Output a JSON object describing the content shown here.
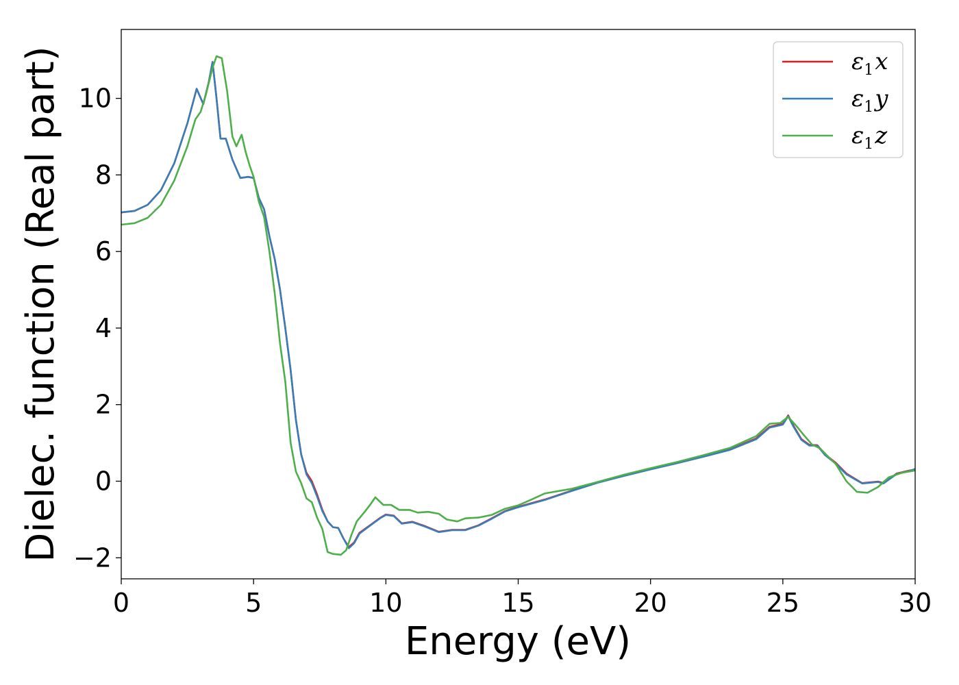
{
  "chart_data": {
    "type": "line",
    "title": "",
    "xlabel": "Energy (eV)",
    "ylabel": "Dielec. function (Real part)",
    "xlim": [
      0,
      30
    ],
    "ylim": [
      -2.55,
      11.8
    ],
    "x_ticks": [
      0,
      5,
      10,
      15,
      20,
      25,
      30
    ],
    "y_ticks": [
      -2,
      0,
      2,
      4,
      6,
      8,
      10
    ],
    "y_tick_labels": [
      "−2",
      "0",
      "2",
      "4",
      "6",
      "8",
      "10"
    ],
    "grid": false,
    "legend_position": "top-right",
    "series": [
      {
        "name": "ε₁x",
        "legend": {
          "base": "ε",
          "sub": "1",
          "var": "x"
        },
        "color": "#e41a1c",
        "points": [
          [
            0,
            7.02
          ],
          [
            0.5,
            7.06
          ],
          [
            1.0,
            7.22
          ],
          [
            1.5,
            7.6
          ],
          [
            2.0,
            8.3
          ],
          [
            2.5,
            9.35
          ],
          [
            2.85,
            10.25
          ],
          [
            3.1,
            9.85
          ],
          [
            3.3,
            10.4
          ],
          [
            3.45,
            10.95
          ],
          [
            3.6,
            10.0
          ],
          [
            3.75,
            8.95
          ],
          [
            3.95,
            8.95
          ],
          [
            4.2,
            8.4
          ],
          [
            4.5,
            7.92
          ],
          [
            4.8,
            7.95
          ],
          [
            5.0,
            7.92
          ],
          [
            5.2,
            7.4
          ],
          [
            5.4,
            7.1
          ],
          [
            5.6,
            6.4
          ],
          [
            5.8,
            5.8
          ],
          [
            6.0,
            5.0
          ],
          [
            6.2,
            4.0
          ],
          [
            6.4,
            2.9
          ],
          [
            6.6,
            1.6
          ],
          [
            6.8,
            0.7
          ],
          [
            7.0,
            0.22
          ],
          [
            7.2,
            0.0
          ],
          [
            7.4,
            -0.35
          ],
          [
            7.6,
            -0.75
          ],
          [
            7.8,
            -1.05
          ],
          [
            8.0,
            -1.2
          ],
          [
            8.2,
            -1.22
          ],
          [
            8.4,
            -1.5
          ],
          [
            8.6,
            -1.72
          ],
          [
            8.8,
            -1.6
          ],
          [
            9.0,
            -1.35
          ],
          [
            9.4,
            -1.15
          ],
          [
            9.8,
            -0.95
          ],
          [
            10.0,
            -0.87
          ],
          [
            10.3,
            -0.9
          ],
          [
            10.6,
            -1.1
          ],
          [
            11.0,
            -1.06
          ],
          [
            11.5,
            -1.18
          ],
          [
            12.0,
            -1.32
          ],
          [
            12.5,
            -1.27
          ],
          [
            13.0,
            -1.27
          ],
          [
            13.5,
            -1.15
          ],
          [
            14.0,
            -0.97
          ],
          [
            14.5,
            -0.78
          ],
          [
            15.0,
            -0.67
          ],
          [
            16.0,
            -0.48
          ],
          [
            17.0,
            -0.25
          ],
          [
            18.0,
            -0.03
          ],
          [
            19.0,
            0.15
          ],
          [
            20.0,
            0.32
          ],
          [
            21.0,
            0.48
          ],
          [
            22.0,
            0.65
          ],
          [
            23.0,
            0.83
          ],
          [
            24.0,
            1.12
          ],
          [
            24.5,
            1.42
          ],
          [
            25.0,
            1.5
          ],
          [
            25.2,
            1.72
          ],
          [
            25.4,
            1.45
          ],
          [
            25.7,
            1.1
          ],
          [
            26.0,
            0.95
          ],
          [
            26.3,
            0.94
          ],
          [
            26.6,
            0.7
          ],
          [
            27.0,
            0.48
          ],
          [
            27.4,
            0.2
          ],
          [
            28.0,
            -0.05
          ],
          [
            28.6,
            -0.01
          ],
          [
            28.8,
            -0.05
          ],
          [
            29.3,
            0.2
          ],
          [
            29.8,
            0.28
          ],
          [
            30.0,
            0.3
          ]
        ]
      },
      {
        "name": "ε₁y",
        "legend": {
          "base": "ε",
          "sub": "1",
          "var": "y"
        },
        "color": "#377eb8",
        "points": [
          [
            0,
            7.02
          ],
          [
            0.5,
            7.06
          ],
          [
            1.0,
            7.22
          ],
          [
            1.5,
            7.6
          ],
          [
            2.0,
            8.3
          ],
          [
            2.5,
            9.35
          ],
          [
            2.85,
            10.25
          ],
          [
            3.1,
            9.85
          ],
          [
            3.3,
            10.4
          ],
          [
            3.45,
            10.95
          ],
          [
            3.6,
            10.0
          ],
          [
            3.75,
            8.95
          ],
          [
            3.95,
            8.95
          ],
          [
            4.2,
            8.4
          ],
          [
            4.5,
            7.92
          ],
          [
            4.8,
            7.95
          ],
          [
            5.0,
            7.92
          ],
          [
            5.2,
            7.4
          ],
          [
            5.4,
            7.1
          ],
          [
            5.6,
            6.4
          ],
          [
            5.8,
            5.8
          ],
          [
            6.0,
            5.0
          ],
          [
            6.2,
            4.0
          ],
          [
            6.4,
            2.9
          ],
          [
            6.6,
            1.6
          ],
          [
            6.8,
            0.7
          ],
          [
            7.0,
            0.18
          ],
          [
            7.2,
            -0.05
          ],
          [
            7.4,
            -0.4
          ],
          [
            7.6,
            -0.78
          ],
          [
            7.8,
            -1.05
          ],
          [
            8.0,
            -1.2
          ],
          [
            8.2,
            -1.22
          ],
          [
            8.4,
            -1.5
          ],
          [
            8.6,
            -1.75
          ],
          [
            8.8,
            -1.62
          ],
          [
            9.0,
            -1.37
          ],
          [
            9.4,
            -1.16
          ],
          [
            9.8,
            -0.96
          ],
          [
            10.0,
            -0.88
          ],
          [
            10.3,
            -0.91
          ],
          [
            10.6,
            -1.11
          ],
          [
            11.0,
            -1.07
          ],
          [
            11.5,
            -1.19
          ],
          [
            12.0,
            -1.33
          ],
          [
            12.5,
            -1.28
          ],
          [
            13.0,
            -1.28
          ],
          [
            13.5,
            -1.16
          ],
          [
            14.0,
            -0.98
          ],
          [
            14.5,
            -0.79
          ],
          [
            15.0,
            -0.68
          ],
          [
            16.0,
            -0.49
          ],
          [
            17.0,
            -0.26
          ],
          [
            18.0,
            -0.04
          ],
          [
            19.0,
            0.14
          ],
          [
            20.0,
            0.31
          ],
          [
            21.0,
            0.47
          ],
          [
            22.0,
            0.64
          ],
          [
            23.0,
            0.82
          ],
          [
            24.0,
            1.1
          ],
          [
            24.5,
            1.4
          ],
          [
            25.0,
            1.48
          ],
          [
            25.2,
            1.7
          ],
          [
            25.4,
            1.43
          ],
          [
            25.7,
            1.08
          ],
          [
            26.0,
            0.93
          ],
          [
            26.3,
            0.93
          ],
          [
            26.6,
            0.68
          ],
          [
            27.0,
            0.46
          ],
          [
            27.4,
            0.18
          ],
          [
            28.0,
            -0.06
          ],
          [
            28.6,
            -0.02
          ],
          [
            28.8,
            -0.06
          ],
          [
            29.3,
            0.19
          ],
          [
            29.8,
            0.27
          ],
          [
            30.0,
            0.32
          ]
        ]
      },
      {
        "name": "ε₁z",
        "legend": {
          "base": "ε",
          "sub": "1",
          "var": "z"
        },
        "color": "#4daf4a",
        "points": [
          [
            0,
            6.7
          ],
          [
            0.5,
            6.74
          ],
          [
            1.0,
            6.88
          ],
          [
            1.5,
            7.22
          ],
          [
            2.0,
            7.85
          ],
          [
            2.5,
            8.75
          ],
          [
            2.8,
            9.45
          ],
          [
            3.0,
            9.65
          ],
          [
            3.2,
            10.1
          ],
          [
            3.45,
            10.8
          ],
          [
            3.6,
            11.1
          ],
          [
            3.8,
            11.05
          ],
          [
            4.0,
            10.2
          ],
          [
            4.2,
            9.0
          ],
          [
            4.35,
            8.75
          ],
          [
            4.55,
            9.05
          ],
          [
            4.7,
            8.6
          ],
          [
            4.85,
            8.25
          ],
          [
            5.0,
            7.95
          ],
          [
            5.2,
            7.3
          ],
          [
            5.4,
            6.9
          ],
          [
            5.6,
            6.0
          ],
          [
            5.8,
            4.9
          ],
          [
            6.0,
            3.6
          ],
          [
            6.2,
            2.6
          ],
          [
            6.4,
            1.0
          ],
          [
            6.6,
            0.25
          ],
          [
            6.8,
            -0.05
          ],
          [
            7.0,
            -0.45
          ],
          [
            7.2,
            -0.55
          ],
          [
            7.4,
            -0.95
          ],
          [
            7.6,
            -1.25
          ],
          [
            7.8,
            -1.85
          ],
          [
            8.0,
            -1.9
          ],
          [
            8.3,
            -1.92
          ],
          [
            8.5,
            -1.8
          ],
          [
            8.7,
            -1.4
          ],
          [
            8.9,
            -1.05
          ],
          [
            9.2,
            -0.8
          ],
          [
            9.4,
            -0.62
          ],
          [
            9.6,
            -0.42
          ],
          [
            9.9,
            -0.62
          ],
          [
            10.2,
            -0.62
          ],
          [
            10.5,
            -0.75
          ],
          [
            10.9,
            -0.75
          ],
          [
            11.2,
            -0.82
          ],
          [
            11.6,
            -0.8
          ],
          [
            12.0,
            -0.85
          ],
          [
            12.3,
            -1.0
          ],
          [
            12.7,
            -1.05
          ],
          [
            13.0,
            -0.97
          ],
          [
            13.5,
            -0.95
          ],
          [
            14.0,
            -0.88
          ],
          [
            14.5,
            -0.72
          ],
          [
            15.0,
            -0.63
          ],
          [
            15.5,
            -0.48
          ],
          [
            16.0,
            -0.32
          ],
          [
            17.0,
            -0.2
          ],
          [
            18.0,
            -0.02
          ],
          [
            19.0,
            0.17
          ],
          [
            20.0,
            0.34
          ],
          [
            21.0,
            0.5
          ],
          [
            22.0,
            0.68
          ],
          [
            23.0,
            0.87
          ],
          [
            24.0,
            1.18
          ],
          [
            24.5,
            1.5
          ],
          [
            24.9,
            1.52
          ],
          [
            25.2,
            1.68
          ],
          [
            25.5,
            1.45
          ],
          [
            25.8,
            1.2
          ],
          [
            26.1,
            0.96
          ],
          [
            26.4,
            0.86
          ],
          [
            26.7,
            0.65
          ],
          [
            27.0,
            0.45
          ],
          [
            27.4,
            0.0
          ],
          [
            27.8,
            -0.28
          ],
          [
            28.2,
            -0.3
          ],
          [
            28.6,
            -0.15
          ],
          [
            29.0,
            0.1
          ],
          [
            29.5,
            0.22
          ],
          [
            30.0,
            0.28
          ]
        ]
      }
    ]
  }
}
